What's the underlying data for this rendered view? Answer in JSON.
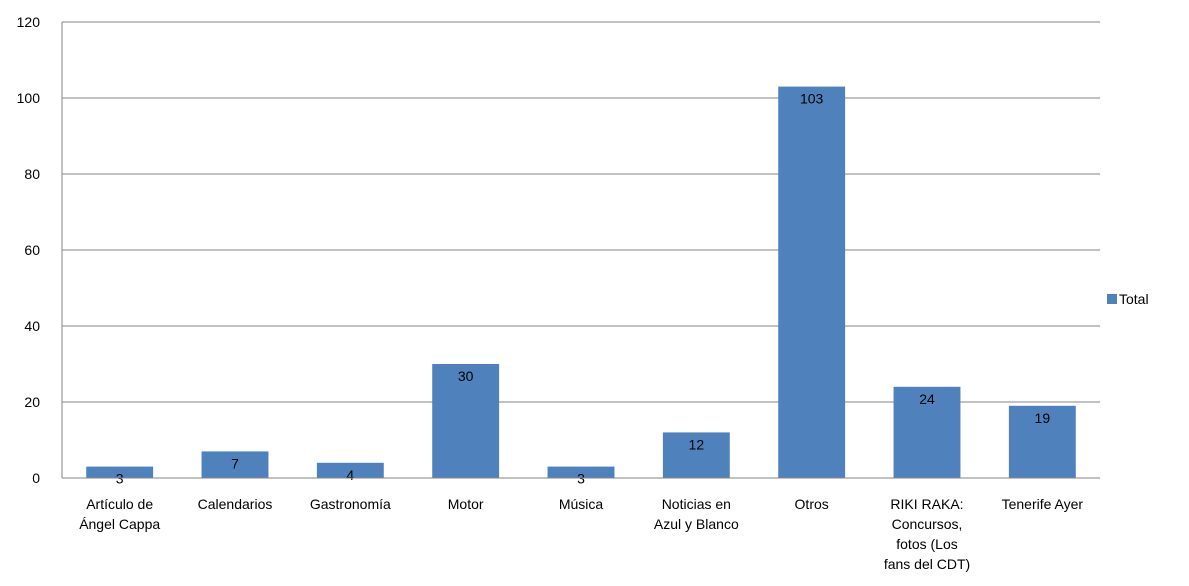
{
  "chart_data": {
    "type": "bar",
    "categories": [
      [
        "Artículo de",
        "Ángel Cappa"
      ],
      [
        "Calendarios"
      ],
      [
        "Gastronomía"
      ],
      [
        "Motor"
      ],
      [
        "Música"
      ],
      [
        "Noticias en",
        "Azul y Blanco"
      ],
      [
        "Otros"
      ],
      [
        "RIKI RAKA:",
        "Concursos,",
        "fotos (Los",
        "fans del CDT)"
      ],
      [
        "Tenerife Ayer"
      ]
    ],
    "series": [
      {
        "name": "Total",
        "values": [
          3,
          7,
          4,
          30,
          3,
          12,
          103,
          24,
          19
        ],
        "color": "#4f81bd"
      }
    ],
    "ylim": [
      0,
      120
    ],
    "yticks": [
      0,
      20,
      40,
      60,
      80,
      100,
      120
    ],
    "grid": true,
    "legend": "right"
  }
}
